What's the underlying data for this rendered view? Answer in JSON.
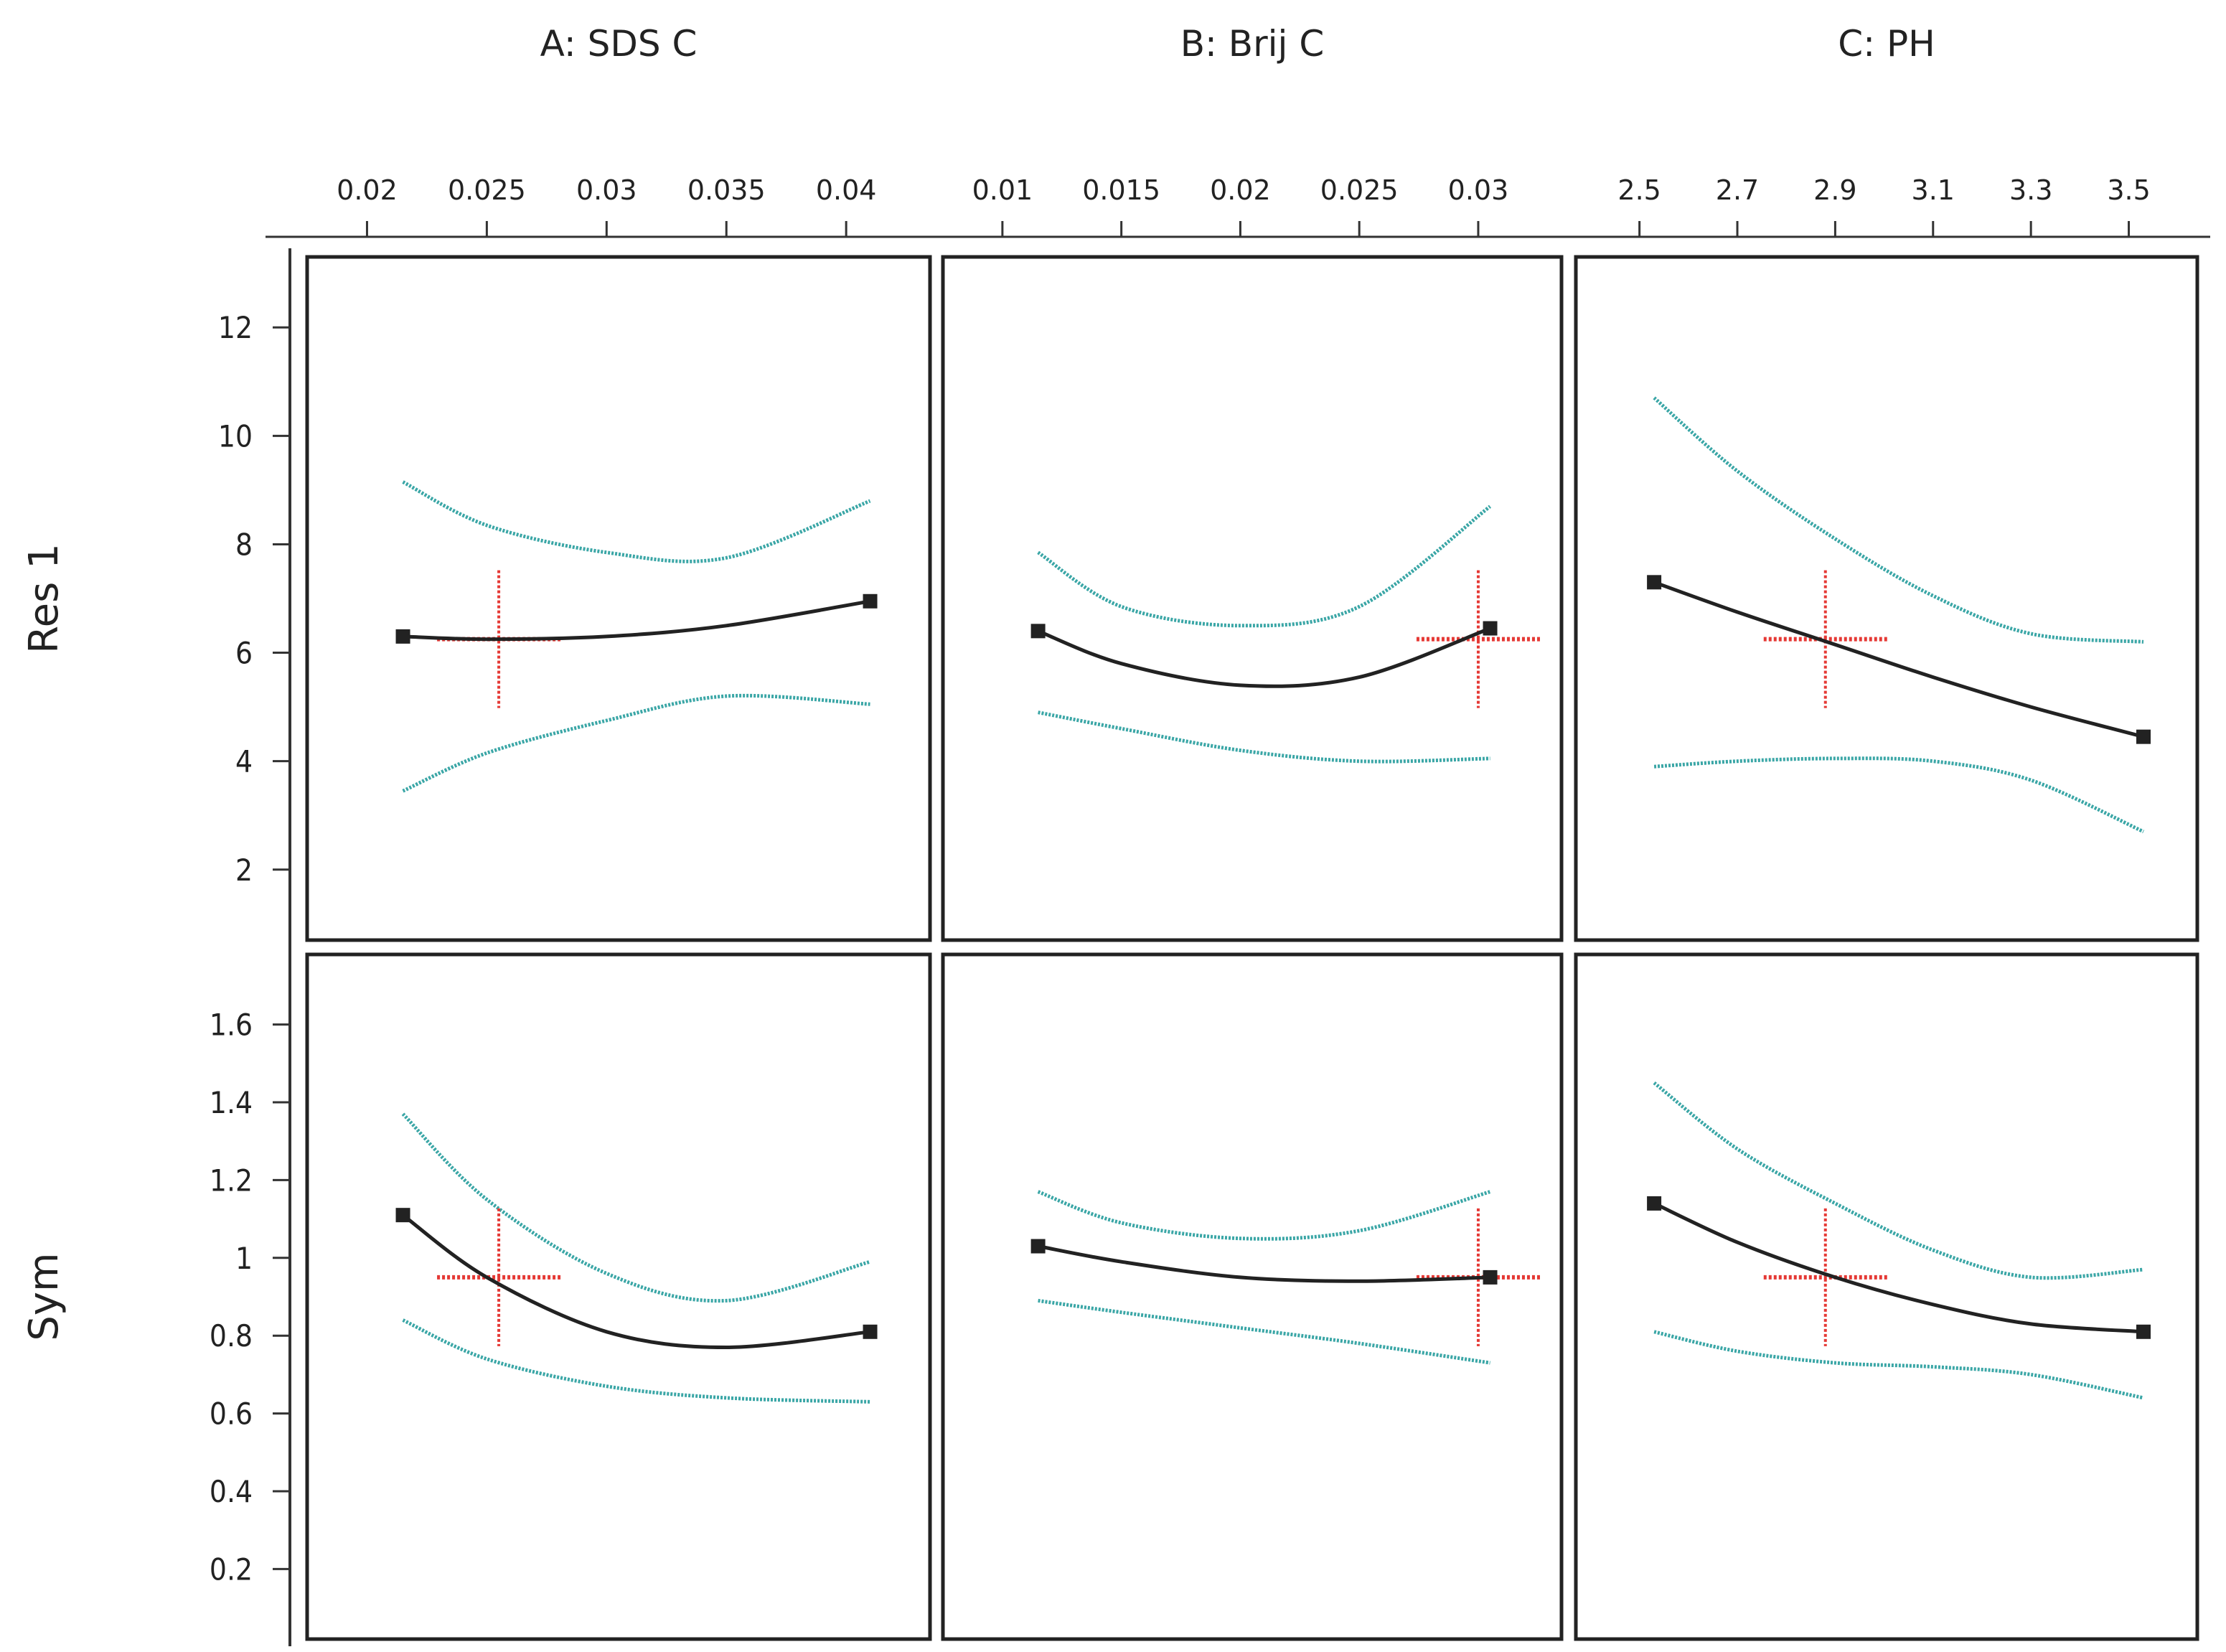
{
  "chart_data": {
    "type": "line",
    "title": "",
    "factors": [
      {
        "label": "A: SDS C",
        "ticks": [
          "0.02",
          "0.025",
          "0.03",
          "0.035",
          "0.04"
        ],
        "xlim": [
          0.0175,
          0.0435
        ]
      },
      {
        "label": "B: Brij C",
        "ticks": [
          "0.01",
          "0.015",
          "0.02",
          "0.025",
          "0.03"
        ],
        "xlim": [
          0.0075,
          0.0335
        ]
      },
      {
        "label": "C: PH",
        "ticks": [
          "2.5",
          "2.7",
          "2.9",
          "3.1",
          "3.3",
          "3.5"
        ],
        "xlim": [
          2.37,
          3.64
        ]
      }
    ],
    "responses": [
      {
        "label": "Res 1",
        "ticks": [
          "2",
          "4",
          "6",
          "8",
          "10",
          "12"
        ],
        "ylim": [
          0.7,
          13.3
        ]
      },
      {
        "label": "Sym",
        "ticks": [
          "0.2",
          "0.4",
          "0.6",
          "0.8",
          "1",
          "1.2",
          "1.4",
          "1.6"
        ],
        "ylim": [
          0.02,
          1.78
        ]
      }
    ],
    "panels": [
      {
        "factor": "A: SDS C",
        "response": "Res 1",
        "x": [
          0.0215,
          0.025,
          0.03,
          0.035,
          0.041
        ],
        "fit": [
          6.3,
          6.25,
          6.3,
          6.5,
          6.95
        ],
        "upper": [
          9.15,
          8.35,
          7.85,
          7.75,
          8.8
        ],
        "lower": [
          3.45,
          4.15,
          4.75,
          5.2,
          5.05
        ],
        "current": {
          "x": 0.0255,
          "y": 6.25
        }
      },
      {
        "factor": "B: Brij C",
        "response": "Res 1",
        "x": [
          0.0115,
          0.015,
          0.02,
          0.025,
          0.0305
        ],
        "fit": [
          6.4,
          5.8,
          5.4,
          5.55,
          6.45
        ],
        "upper": [
          7.85,
          6.85,
          6.5,
          6.85,
          8.7
        ],
        "lower": [
          4.9,
          4.6,
          4.2,
          4.0,
          4.05
        ],
        "current": {
          "x": 0.03,
          "y": 6.25
        }
      },
      {
        "factor": "C: PH",
        "response": "Res 1",
        "x": [
          2.53,
          2.7,
          2.9,
          3.1,
          3.3,
          3.53
        ],
        "fit": [
          7.3,
          6.75,
          6.15,
          5.55,
          5.0,
          4.45
        ],
        "upper": [
          10.7,
          9.35,
          8.1,
          7.05,
          6.35,
          6.2
        ],
        "lower": [
          3.9,
          4.0,
          4.05,
          4.0,
          3.65,
          2.7
        ],
        "current": {
          "x": 2.88,
          "y": 6.25
        }
      },
      {
        "factor": "A: SDS C",
        "response": "Sym",
        "x": [
          0.0215,
          0.025,
          0.03,
          0.035,
          0.041
        ],
        "fit": [
          1.11,
          0.95,
          0.81,
          0.77,
          0.81
        ],
        "upper": [
          1.37,
          1.15,
          0.96,
          0.89,
          0.99
        ],
        "lower": [
          0.84,
          0.74,
          0.67,
          0.64,
          0.63
        ],
        "current": {
          "x": 0.0255,
          "y": 0.95
        }
      },
      {
        "factor": "B: Brij C",
        "response": "Sym",
        "x": [
          0.0115,
          0.015,
          0.02,
          0.025,
          0.0305
        ],
        "fit": [
          1.03,
          0.99,
          0.95,
          0.94,
          0.95
        ],
        "upper": [
          1.17,
          1.09,
          1.05,
          1.07,
          1.17
        ],
        "lower": [
          0.89,
          0.86,
          0.82,
          0.78,
          0.73
        ],
        "current": {
          "x": 0.03,
          "y": 0.95
        }
      },
      {
        "factor": "C: PH",
        "response": "Sym",
        "x": [
          2.53,
          2.7,
          2.9,
          3.1,
          3.3,
          3.53
        ],
        "fit": [
          1.14,
          1.04,
          0.95,
          0.88,
          0.83,
          0.81
        ],
        "upper": [
          1.45,
          1.28,
          1.14,
          1.02,
          0.95,
          0.97
        ],
        "lower": [
          0.81,
          0.76,
          0.73,
          0.72,
          0.7,
          0.64
        ],
        "current": {
          "x": 2.88,
          "y": 0.95
        }
      }
    ],
    "series_colors": {
      "fit": "#222222",
      "interval": "#3aa6a6",
      "current": "#e53935"
    },
    "grid": false,
    "legend": "none"
  }
}
